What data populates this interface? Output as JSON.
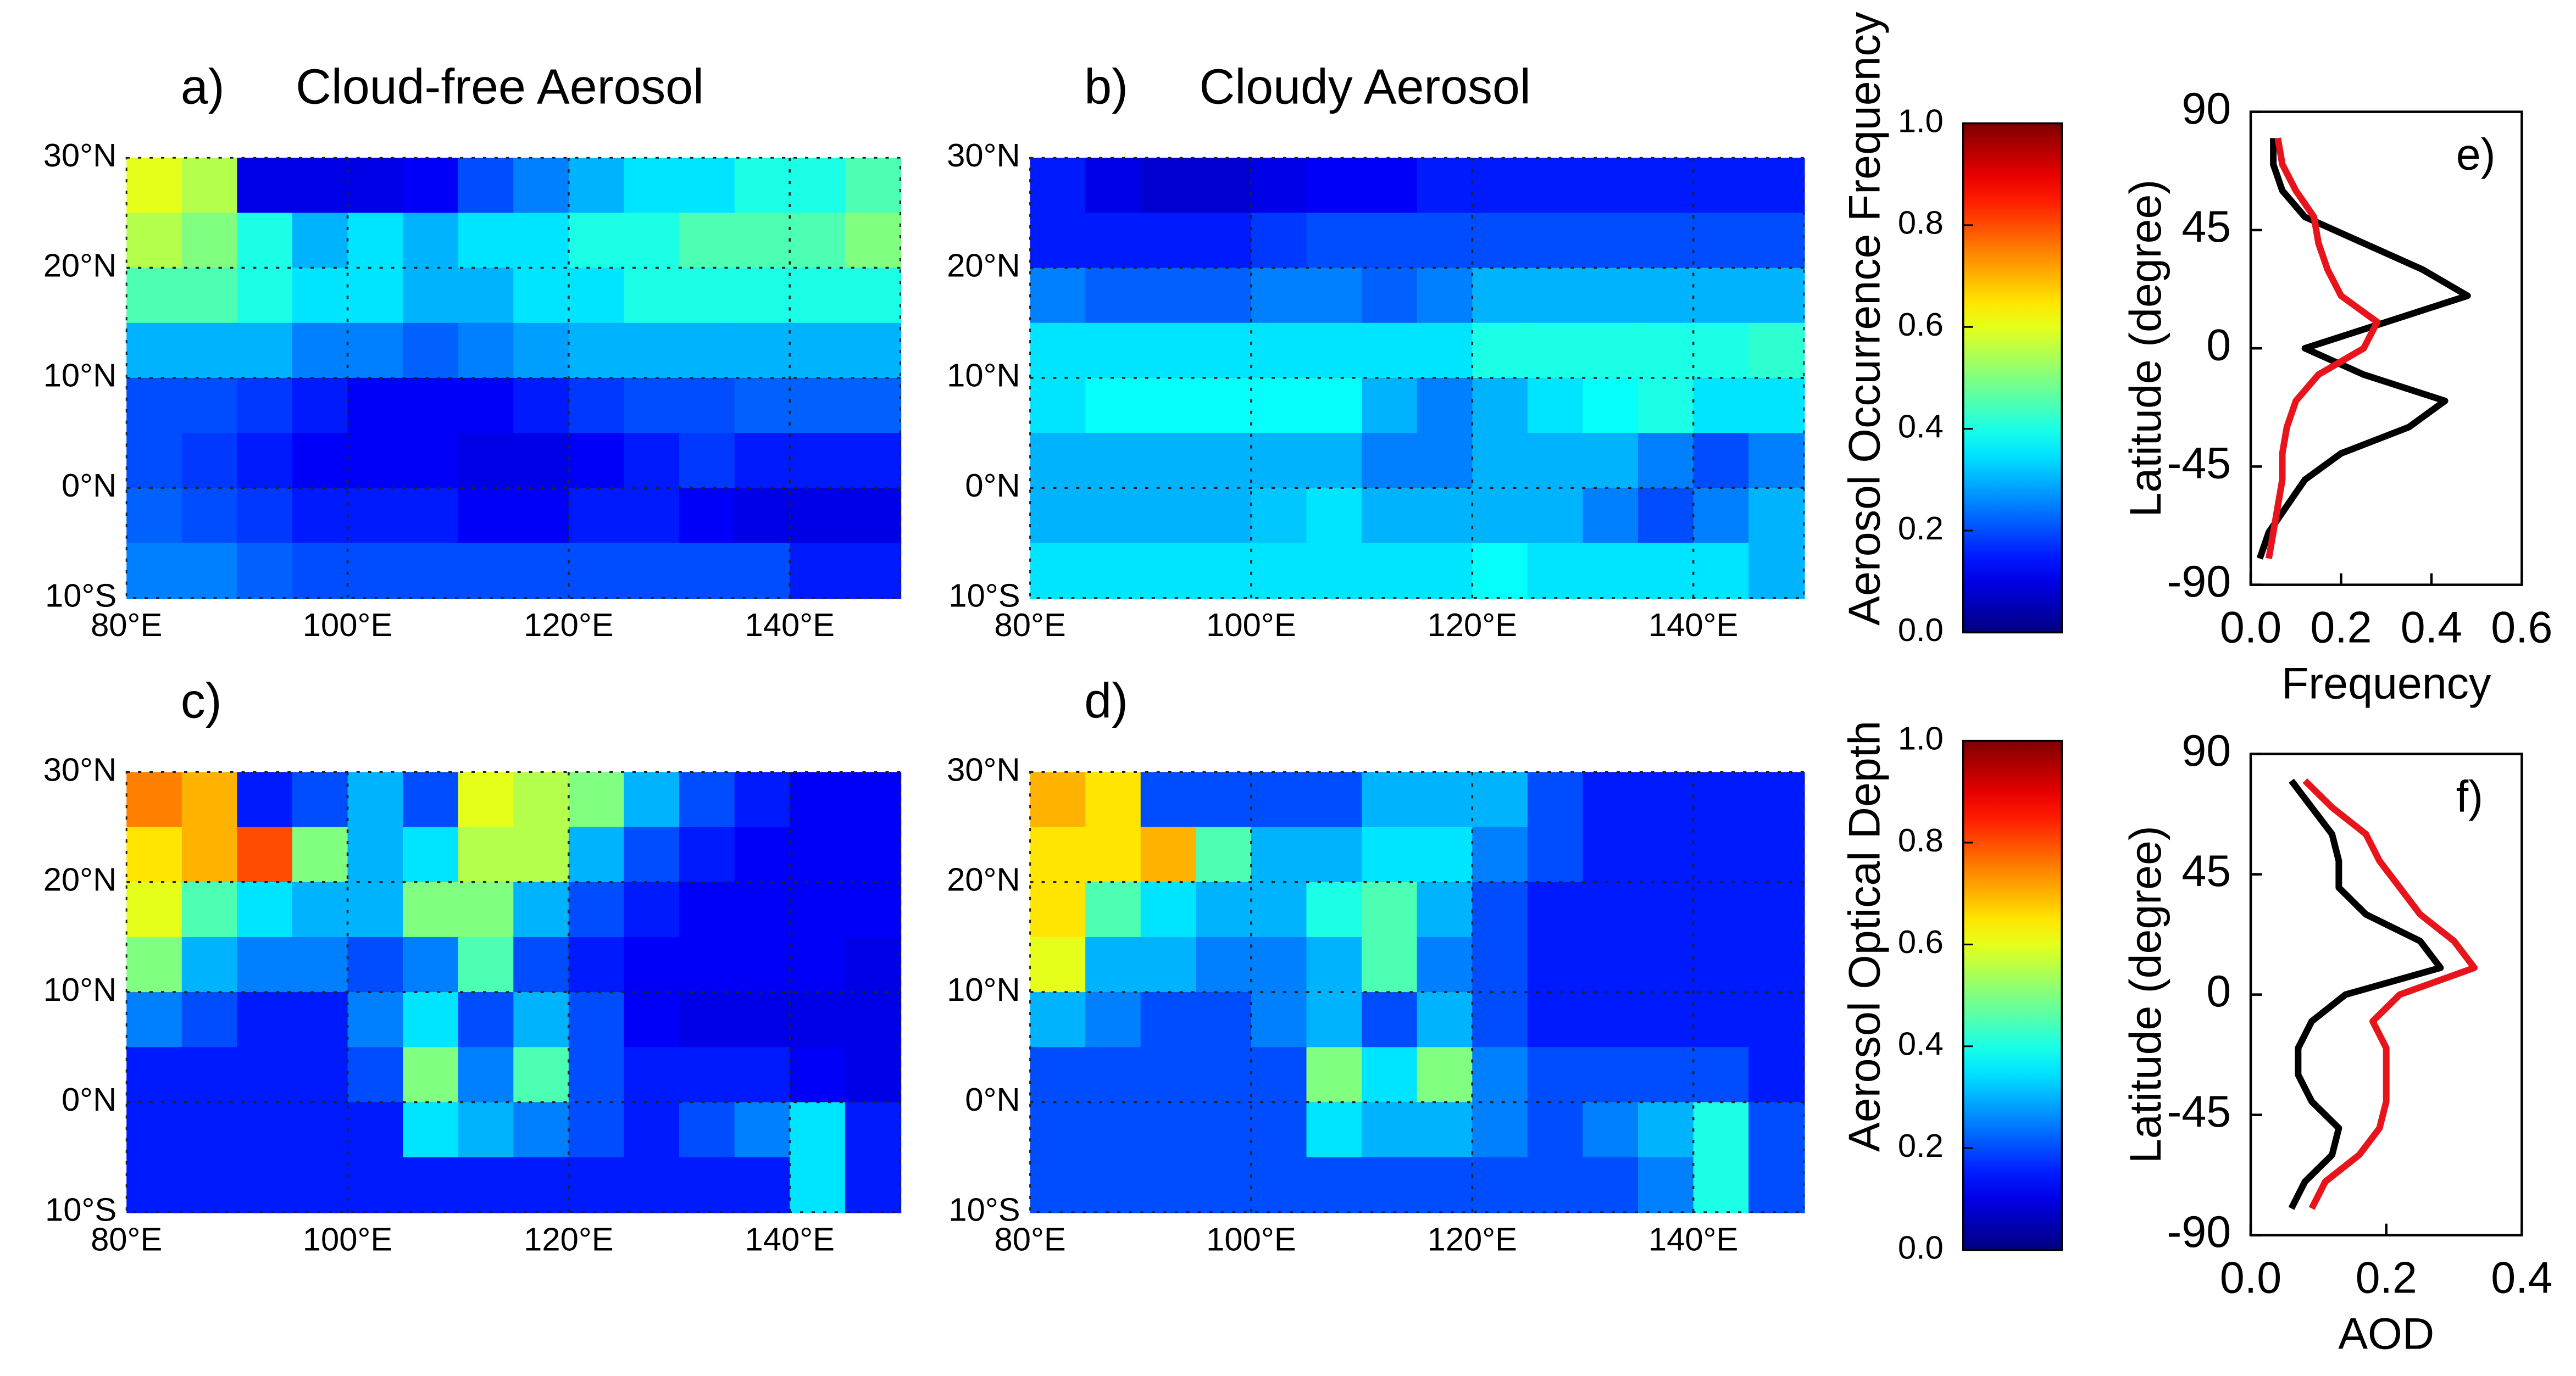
{
  "chart_data": [
    {
      "type": "heatmap",
      "panel_label": "a)",
      "title": "Cloud-free Aerosol",
      "colormap": "jet",
      "clim": [
        0,
        1
      ],
      "xlim": [
        80,
        150
      ],
      "xticks": [
        {
          "value": 80,
          "label": "80°E"
        },
        {
          "value": 100,
          "label": "100°E"
        },
        {
          "value": 120,
          "label": "120°E"
        },
        {
          "value": 140,
          "label": "140°E"
        }
      ],
      "ylim": [
        -10,
        30
      ],
      "yticks": [
        {
          "value": 30,
          "label": "30°N"
        },
        {
          "value": 20,
          "label": "20°N"
        },
        {
          "value": 10,
          "label": "10°N"
        },
        {
          "value": 0,
          "label": "0°N"
        },
        {
          "value": -10,
          "label": "10°S"
        }
      ],
      "grid": true,
      "z": [
        [
          0.6,
          0.55,
          0.1,
          0.1,
          0.1,
          0.12,
          0.2,
          0.25,
          0.3,
          0.35,
          0.35,
          0.4,
          0.4,
          0.45
        ],
        [
          0.55,
          0.5,
          0.4,
          0.3,
          0.35,
          0.3,
          0.35,
          0.35,
          0.4,
          0.4,
          0.45,
          0.45,
          0.45,
          0.5
        ],
        [
          0.45,
          0.45,
          0.4,
          0.35,
          0.35,
          0.3,
          0.3,
          0.35,
          0.35,
          0.4,
          0.4,
          0.4,
          0.4,
          0.4
        ],
        [
          0.3,
          0.3,
          0.3,
          0.25,
          0.25,
          0.22,
          0.25,
          0.28,
          0.3,
          0.3,
          0.3,
          0.3,
          0.3,
          0.3
        ],
        [
          0.2,
          0.2,
          0.18,
          0.15,
          0.12,
          0.12,
          0.12,
          0.15,
          0.18,
          0.2,
          0.2,
          0.22,
          0.22,
          0.22
        ],
        [
          0.2,
          0.18,
          0.15,
          0.12,
          0.12,
          0.12,
          0.1,
          0.1,
          0.12,
          0.15,
          0.18,
          0.15,
          0.15,
          0.15
        ],
        [
          0.22,
          0.2,
          0.18,
          0.15,
          0.15,
          0.15,
          0.12,
          0.12,
          0.15,
          0.15,
          0.12,
          0.1,
          0.1,
          0.1
        ],
        [
          0.25,
          0.25,
          0.22,
          0.2,
          0.2,
          0.2,
          0.2,
          0.2,
          0.2,
          0.2,
          0.2,
          0.2,
          0.15,
          0.15
        ]
      ]
    },
    {
      "type": "heatmap",
      "panel_label": "b)",
      "title": "Cloudy Aerosol",
      "colormap": "jet",
      "clim": [
        0,
        1
      ],
      "xlim": [
        80,
        150
      ],
      "xticks": [
        {
          "value": 80,
          "label": "80°E"
        },
        {
          "value": 100,
          "label": "100°E"
        },
        {
          "value": 120,
          "label": "120°E"
        },
        {
          "value": 140,
          "label": "140°E"
        }
      ],
      "ylim": [
        -10,
        30
      ],
      "yticks": [
        {
          "value": 30,
          "label": "30°N"
        },
        {
          "value": 20,
          "label": "20°N"
        },
        {
          "value": 10,
          "label": "10°N"
        },
        {
          "value": 0,
          "label": "0°N"
        },
        {
          "value": -10,
          "label": "10°S"
        }
      ],
      "grid": true,
      "z": [
        [
          0.15,
          0.1,
          0.08,
          0.08,
          0.1,
          0.12,
          0.12,
          0.15,
          0.15,
          0.15,
          0.15,
          0.15,
          0.15,
          0.15
        ],
        [
          0.15,
          0.15,
          0.15,
          0.15,
          0.18,
          0.2,
          0.2,
          0.2,
          0.2,
          0.2,
          0.2,
          0.2,
          0.2,
          0.2
        ],
        [
          0.25,
          0.22,
          0.22,
          0.22,
          0.25,
          0.25,
          0.22,
          0.25,
          0.3,
          0.3,
          0.3,
          0.3,
          0.3,
          0.3
        ],
        [
          0.35,
          0.35,
          0.35,
          0.35,
          0.35,
          0.35,
          0.35,
          0.35,
          0.4,
          0.4,
          0.4,
          0.4,
          0.4,
          0.42
        ],
        [
          0.35,
          0.38,
          0.38,
          0.38,
          0.38,
          0.38,
          0.3,
          0.25,
          0.3,
          0.35,
          0.38,
          0.4,
          0.35,
          0.35
        ],
        [
          0.3,
          0.3,
          0.3,
          0.3,
          0.3,
          0.3,
          0.25,
          0.25,
          0.3,
          0.3,
          0.3,
          0.25,
          0.2,
          0.25
        ],
        [
          0.3,
          0.3,
          0.3,
          0.3,
          0.32,
          0.35,
          0.3,
          0.3,
          0.3,
          0.3,
          0.25,
          0.2,
          0.25,
          0.3
        ],
        [
          0.35,
          0.35,
          0.35,
          0.35,
          0.35,
          0.35,
          0.35,
          0.35,
          0.38,
          0.35,
          0.35,
          0.35,
          0.35,
          0.3
        ]
      ]
    },
    {
      "type": "colorbar",
      "label": "Aerosol Occurrence Frequency",
      "colormap": "jet",
      "ylim": [
        0,
        1
      ],
      "yticks": [
        {
          "value": 0,
          "label": "0.0"
        },
        {
          "value": 0.2,
          "label": "0.2"
        },
        {
          "value": 0.4,
          "label": "0.4"
        },
        {
          "value": 0.6,
          "label": "0.6"
        },
        {
          "value": 0.8,
          "label": "0.8"
        },
        {
          "value": 1,
          "label": "1.0"
        }
      ]
    },
    {
      "type": "heatmap",
      "panel_label": "c)",
      "colormap": "jet",
      "clim": [
        0,
        1
      ],
      "xlim": [
        80,
        150
      ],
      "xticks": [
        {
          "value": 80,
          "label": "80°E"
        },
        {
          "value": 100,
          "label": "100°E"
        },
        {
          "value": 120,
          "label": "120°E"
        },
        {
          "value": 140,
          "label": "140°E"
        }
      ],
      "ylim": [
        -10,
        30
      ],
      "yticks": [
        {
          "value": 30,
          "label": "30°N"
        },
        {
          "value": 20,
          "label": "20°N"
        },
        {
          "value": 10,
          "label": "10°N"
        },
        {
          "value": 0,
          "label": "0°N"
        },
        {
          "value": -10,
          "label": "10°S"
        }
      ],
      "grid": true,
      "z": [
        [
          0.75,
          0.7,
          0.15,
          0.2,
          0.3,
          0.2,
          0.6,
          0.55,
          0.5,
          0.3,
          0.2,
          0.15,
          0.12,
          0.12
        ],
        [
          0.65,
          0.7,
          0.8,
          0.5,
          0.3,
          0.35,
          0.55,
          0.55,
          0.3,
          0.2,
          0.15,
          0.12,
          0.12,
          0.12
        ],
        [
          0.6,
          0.45,
          0.35,
          0.3,
          0.3,
          0.5,
          0.5,
          0.3,
          0.2,
          0.15,
          0.12,
          0.12,
          0.12,
          0.12
        ],
        [
          0.5,
          0.3,
          0.25,
          0.25,
          0.2,
          0.25,
          0.45,
          0.2,
          0.15,
          0.12,
          0.12,
          0.12,
          0.12,
          0.1
        ],
        [
          0.25,
          0.2,
          0.15,
          0.15,
          0.25,
          0.35,
          0.2,
          0.3,
          0.2,
          0.12,
          0.1,
          0.1,
          0.1,
          0.1
        ],
        [
          0.15,
          0.15,
          0.15,
          0.15,
          0.2,
          0.5,
          0.25,
          0.45,
          0.2,
          0.15,
          0.15,
          0.15,
          0.12,
          0.1
        ],
        [
          0.15,
          0.15,
          0.15,
          0.15,
          0.15,
          0.35,
          0.3,
          0.25,
          0.2,
          0.15,
          0.2,
          0.25,
          0.35,
          0.15
        ],
        [
          0.15,
          0.15,
          0.15,
          0.15,
          0.15,
          0.15,
          0.15,
          0.15,
          0.15,
          0.15,
          0.15,
          0.15,
          0.35,
          0.15
        ]
      ]
    },
    {
      "type": "heatmap",
      "panel_label": "d)",
      "colormap": "jet",
      "clim": [
        0,
        1
      ],
      "xlim": [
        80,
        150
      ],
      "xticks": [
        {
          "value": 80,
          "label": "80°E"
        },
        {
          "value": 100,
          "label": "100°E"
        },
        {
          "value": 120,
          "label": "120°E"
        },
        {
          "value": 140,
          "label": "140°E"
        }
      ],
      "ylim": [
        -10,
        30
      ],
      "yticks": [
        {
          "value": 30,
          "label": "30°N"
        },
        {
          "value": 20,
          "label": "20°N"
        },
        {
          "value": 10,
          "label": "10°N"
        },
        {
          "value": 0,
          "label": "0°N"
        },
        {
          "value": -10,
          "label": "10°S"
        }
      ],
      "grid": true,
      "z": [
        [
          0.7,
          0.65,
          0.2,
          0.2,
          0.2,
          0.2,
          0.3,
          0.3,
          0.3,
          0.2,
          0.15,
          0.15,
          0.15,
          0.15
        ],
        [
          0.65,
          0.65,
          0.7,
          0.45,
          0.3,
          0.3,
          0.35,
          0.35,
          0.25,
          0.2,
          0.15,
          0.15,
          0.15,
          0.15
        ],
        [
          0.65,
          0.45,
          0.35,
          0.3,
          0.3,
          0.4,
          0.45,
          0.3,
          0.2,
          0.15,
          0.15,
          0.15,
          0.15,
          0.15
        ],
        [
          0.6,
          0.3,
          0.3,
          0.25,
          0.25,
          0.3,
          0.45,
          0.25,
          0.2,
          0.15,
          0.15,
          0.15,
          0.15,
          0.15
        ],
        [
          0.3,
          0.25,
          0.2,
          0.2,
          0.25,
          0.3,
          0.2,
          0.3,
          0.2,
          0.15,
          0.15,
          0.15,
          0.15,
          0.15
        ],
        [
          0.2,
          0.2,
          0.2,
          0.2,
          0.2,
          0.5,
          0.35,
          0.5,
          0.25,
          0.2,
          0.2,
          0.2,
          0.2,
          0.15
        ],
        [
          0.2,
          0.2,
          0.2,
          0.2,
          0.2,
          0.35,
          0.3,
          0.3,
          0.25,
          0.2,
          0.25,
          0.3,
          0.4,
          0.2
        ],
        [
          0.2,
          0.2,
          0.2,
          0.2,
          0.2,
          0.2,
          0.2,
          0.2,
          0.2,
          0.2,
          0.2,
          0.25,
          0.4,
          0.2
        ]
      ]
    },
    {
      "type": "colorbar",
      "label": "Aerosol Optical Depth",
      "colormap": "jet",
      "ylim": [
        0,
        1
      ],
      "yticks": [
        {
          "value": 0,
          "label": "0.0"
        },
        {
          "value": 0.2,
          "label": "0.2"
        },
        {
          "value": 0.4,
          "label": "0.4"
        },
        {
          "value": 0.6,
          "label": "0.6"
        },
        {
          "value": 0.8,
          "label": "0.8"
        },
        {
          "value": 1,
          "label": "1.0"
        }
      ]
    },
    {
      "type": "line",
      "panel_label": "e)",
      "x_label": "Frequency",
      "y_label": "Latitude (degree)",
      "xlim": [
        0,
        0.6
      ],
      "xticks": [
        {
          "value": 0,
          "label": "0.0"
        },
        {
          "value": 0.2,
          "label": "0.2"
        },
        {
          "value": 0.4,
          "label": "0.4"
        },
        {
          "value": 0.6,
          "label": "0.6"
        }
      ],
      "ylim": [
        -90,
        90
      ],
      "yticks": [
        -90,
        -45,
        0,
        45,
        90
      ],
      "y": [
        80,
        70,
        60,
        50,
        40,
        30,
        20,
        10,
        0,
        -10,
        -20,
        -30,
        -40,
        -50,
        -60,
        -70,
        -80
      ],
      "series": [
        {
          "color": "#000000",
          "values": [
            0.05,
            0.05,
            0.07,
            0.12,
            0.25,
            0.38,
            0.48,
            0.3,
            0.12,
            0.25,
            0.43,
            0.35,
            0.2,
            0.12,
            0.08,
            0.04,
            0.02
          ]
        },
        {
          "color": "#e8141b",
          "values": [
            0.06,
            0.07,
            0.1,
            0.14,
            0.15,
            0.17,
            0.2,
            0.28,
            0.25,
            0.15,
            0.1,
            0.08,
            0.07,
            0.07,
            0.06,
            0.05,
            0.04
          ]
        }
      ]
    },
    {
      "type": "line",
      "panel_label": "f)",
      "x_label": "AOD",
      "y_label": "Latitude (degree)",
      "xlim": [
        0,
        0.4
      ],
      "xticks": [
        {
          "value": 0,
          "label": "0.0"
        },
        {
          "value": 0.2,
          "label": "0.2"
        },
        {
          "value": 0.4,
          "label": "0.4"
        }
      ],
      "ylim": [
        -90,
        90
      ],
      "yticks": [
        -90,
        -45,
        0,
        45,
        90
      ],
      "y": [
        80,
        70,
        60,
        50,
        40,
        30,
        20,
        10,
        0,
        -10,
        -20,
        -30,
        -40,
        -50,
        -60,
        -70,
        -80
      ],
      "series": [
        {
          "color": "#000000",
          "values": [
            0.06,
            0.09,
            0.12,
            0.13,
            0.13,
            0.17,
            0.25,
            0.28,
            0.14,
            0.09,
            0.07,
            0.07,
            0.09,
            0.13,
            0.12,
            0.08,
            0.06
          ]
        },
        {
          "color": "#e8141b",
          "values": [
            0.08,
            0.12,
            0.17,
            0.19,
            0.22,
            0.25,
            0.3,
            0.33,
            0.22,
            0.18,
            0.2,
            0.2,
            0.2,
            0.19,
            0.16,
            0.11,
            0.09
          ]
        }
      ]
    }
  ]
}
